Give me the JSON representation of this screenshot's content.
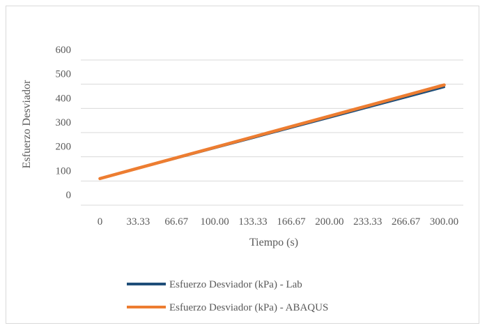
{
  "chart_data": {
    "type": "line",
    "title": "",
    "xlabel": "Tiempo (s)",
    "ylabel": "Esfuerzo Desviador",
    "categories": [
      "0",
      "33.33",
      "66.67",
      "100.00",
      "133.33",
      "166.67",
      "200.00",
      "233.33",
      "266.67",
      "300.00"
    ],
    "yticks": [
      "0",
      "100",
      "200",
      "300",
      "400",
      "500",
      "600"
    ],
    "ylim": [
      0,
      600
    ],
    "grid": true,
    "legend_position": "bottom",
    "series": [
      {
        "name": "Esfuerzo Desviador (kPa) - Lab",
        "color": "#1f4e79",
        "values": [
          110,
          152,
          194,
          236,
          278,
          320,
          362,
          404,
          446,
          488
        ]
      },
      {
        "name": "Esfuerzo Desviador (kPa) - ABAQUS",
        "color": "#ed7d31",
        "values": [
          110,
          153,
          196,
          239,
          282,
          325,
          368,
          411,
          454,
          497
        ]
      }
    ]
  }
}
